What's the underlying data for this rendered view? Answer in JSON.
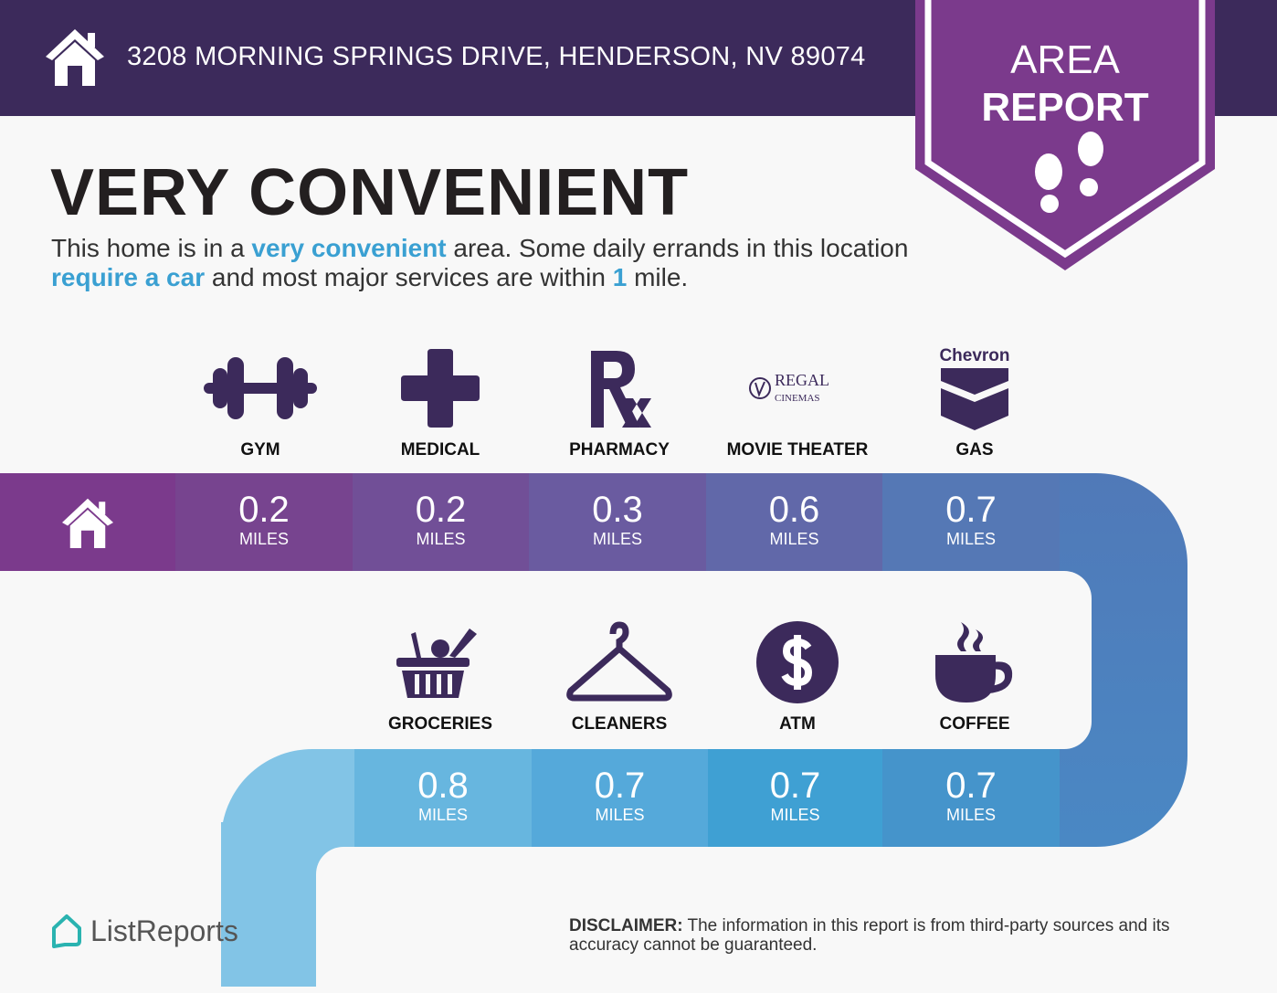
{
  "header": {
    "address": "3208 MORNING SPRINGS DRIVE, HENDERSON, NV 89074",
    "badge_line1": "AREA",
    "badge_line2": "REPORT"
  },
  "title": "VERY CONVENIENT",
  "description": {
    "p1": "This home is in a ",
    "h1": "very convenient",
    "p2": " area. Some daily errands in this location ",
    "h2": "require a car",
    "p3": " and most major services are within ",
    "h3": "1",
    "p4": " mile."
  },
  "top_row": [
    {
      "label": "GYM",
      "icon": "dumbbell-icon",
      "distance": "0.2",
      "unit": "MILES",
      "color": "#77448f"
    },
    {
      "label": "MEDICAL",
      "icon": "medical-cross-icon",
      "distance": "0.2",
      "unit": "MILES",
      "color": "#714f97"
    },
    {
      "label": "PHARMACY",
      "icon": "rx-icon",
      "distance": "0.3",
      "unit": "MILES",
      "color": "#6a5ba0"
    },
    {
      "label": "MOVIE THEATER",
      "icon": "regal-cinemas-logo",
      "logo_text": "REGAL",
      "logo_sub": "CINEMAS",
      "distance": "0.6",
      "unit": "MILES",
      "color": "#6168a9"
    },
    {
      "label": "GAS",
      "icon": "chevron-logo",
      "logo_text": "Chevron",
      "distance": "0.7",
      "unit": "MILES",
      "color": "#5578b5"
    }
  ],
  "bottom_row": [
    {
      "label": "GROCERIES",
      "icon": "grocery-basket-icon",
      "distance": "0.8",
      "unit": "MILES",
      "color": "#67b6df"
    },
    {
      "label": "CLEANERS",
      "icon": "hanger-icon",
      "distance": "0.7",
      "unit": "MILES",
      "color": "#55a9da"
    },
    {
      "label": "ATM",
      "icon": "dollar-icon",
      "distance": "0.7",
      "unit": "MILES",
      "color": "#3fa0d3"
    },
    {
      "label": "COFFEE",
      "icon": "coffee-icon",
      "distance": "0.7",
      "unit": "MILES",
      "color": "#4594cb"
    }
  ],
  "footer": {
    "brand": "ListReports",
    "disclaimer_label": "DISCLAIMER:",
    "disclaimer_text": " The information in this report is from third-party sources and its accuracy cannot be guaranteed."
  },
  "colors": {
    "header": "#3c2a5b",
    "badge": "#7b3a8c",
    "icon": "#3c2a5b",
    "highlight": "#3aa0d2"
  }
}
